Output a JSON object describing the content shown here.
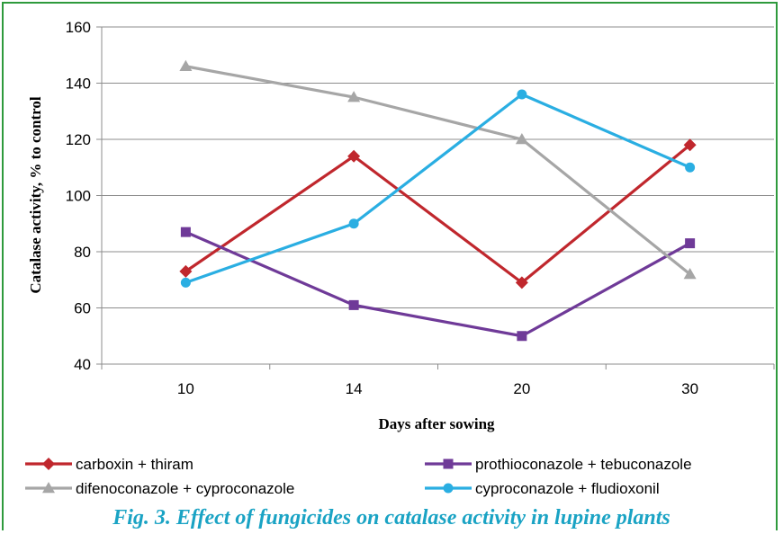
{
  "chart_data": {
    "type": "line",
    "title": "",
    "xlabel": "Days after sowing",
    "ylabel": "Catalase activity, % to control",
    "categories": [
      "10",
      "14",
      "20",
      "30"
    ],
    "ylim": [
      40,
      160
    ],
    "yticks": [
      40,
      60,
      80,
      100,
      120,
      140,
      160
    ],
    "grid": true,
    "legend_position": "bottom",
    "series": [
      {
        "name": "carboxin + thiram",
        "values": [
          73,
          114,
          69,
          118
        ],
        "color": "#c0272d",
        "marker": "diamond"
      },
      {
        "name": "prothioconazole + tebuconazole",
        "values": [
          87,
          61,
          50,
          83
        ],
        "color": "#6f3a98",
        "marker": "square"
      },
      {
        "name": "difenoconazole + cyproconazole",
        "values": [
          146,
          135,
          120,
          72
        ],
        "color": "#a6a6a6",
        "marker": "triangle"
      },
      {
        "name": "cyproconazole + fludioxonil",
        "values": [
          69,
          90,
          136,
          110
        ],
        "color": "#2aaee2",
        "marker": "circle"
      }
    ]
  },
  "caption": "Fig. 3. Effect of fungicides on catalase activity in lupine plants"
}
